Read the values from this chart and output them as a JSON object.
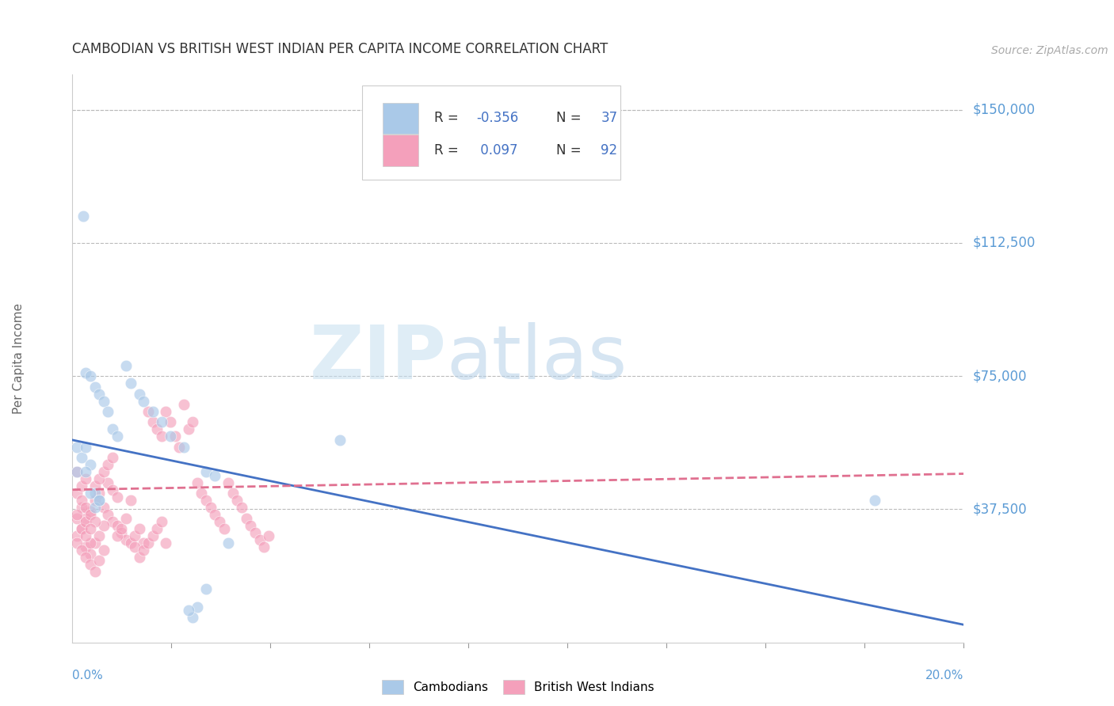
{
  "title": "CAMBODIAN VS BRITISH WEST INDIAN PER CAPITA INCOME CORRELATION CHART",
  "source": "Source: ZipAtlas.com",
  "ylabel": "Per Capita Income",
  "yticks": [
    0,
    37500,
    75000,
    112500,
    150000
  ],
  "ytick_labels": [
    "",
    "$37,500",
    "$75,000",
    "$112,500",
    "$150,000"
  ],
  "xlim": [
    0.0,
    0.2
  ],
  "ylim": [
    0,
    160000
  ],
  "watermark_zip": "ZIP",
  "watermark_atlas": "atlas",
  "legend_label_cambodians": "Cambodians",
  "legend_label_bwi": "British West Indians",
  "cambodian_color": "#aac9e8",
  "bwi_color": "#f4a0bb",
  "line_cambodian_color": "#4472c4",
  "line_bwi_color": "#e07090",
  "background_color": "#ffffff",
  "grid_color": "#bbbbbb",
  "title_color": "#333333",
  "source_color": "#aaaaaa",
  "yaxis_label_color": "#5b9bd5",
  "xaxis_label_color": "#5b9bd5",
  "cambodian_R": "-0.356",
  "cambodian_N": "37",
  "bwi_R": "0.097",
  "bwi_N": "92",
  "R_value_color": "#4472c4",
  "N_value_color": "#4472c4",
  "R_label_color": "#333333",
  "N_label_color": "#333333",
  "cambodian_dots": [
    [
      0.001,
      55000
    ],
    [
      0.002,
      52000
    ],
    [
      0.0025,
      120000
    ],
    [
      0.003,
      76000
    ],
    [
      0.004,
      75000
    ],
    [
      0.005,
      72000
    ],
    [
      0.006,
      70000
    ],
    [
      0.007,
      68000
    ],
    [
      0.008,
      65000
    ],
    [
      0.009,
      60000
    ],
    [
      0.01,
      58000
    ],
    [
      0.012,
      78000
    ],
    [
      0.013,
      73000
    ],
    [
      0.015,
      70000
    ],
    [
      0.016,
      68000
    ],
    [
      0.018,
      65000
    ],
    [
      0.003,
      55000
    ],
    [
      0.004,
      50000
    ],
    [
      0.005,
      42000
    ],
    [
      0.006,
      40000
    ],
    [
      0.02,
      62000
    ],
    [
      0.022,
      58000
    ],
    [
      0.025,
      55000
    ],
    [
      0.03,
      48000
    ],
    [
      0.032,
      47000
    ],
    [
      0.06,
      57000
    ],
    [
      0.001,
      48000
    ],
    [
      0.003,
      48000
    ],
    [
      0.004,
      42000
    ],
    [
      0.005,
      38000
    ],
    [
      0.006,
      40000
    ],
    [
      0.18,
      40000
    ],
    [
      0.035,
      28000
    ],
    [
      0.03,
      15000
    ],
    [
      0.028,
      10000
    ],
    [
      0.027,
      7000
    ],
    [
      0.026,
      9000
    ]
  ],
  "bwi_dots": [
    [
      0.001,
      30000
    ],
    [
      0.002,
      32000
    ],
    [
      0.003,
      35000
    ],
    [
      0.004,
      37000
    ],
    [
      0.005,
      40000
    ],
    [
      0.006,
      42000
    ],
    [
      0.007,
      38000
    ],
    [
      0.008,
      36000
    ],
    [
      0.009,
      34000
    ],
    [
      0.01,
      33000
    ],
    [
      0.011,
      31000
    ],
    [
      0.012,
      29000
    ],
    [
      0.013,
      28000
    ],
    [
      0.014,
      30000
    ],
    [
      0.015,
      32000
    ],
    [
      0.016,
      28000
    ],
    [
      0.017,
      65000
    ],
    [
      0.018,
      62000
    ],
    [
      0.019,
      60000
    ],
    [
      0.02,
      58000
    ],
    [
      0.021,
      65000
    ],
    [
      0.022,
      62000
    ],
    [
      0.023,
      58000
    ],
    [
      0.024,
      55000
    ],
    [
      0.025,
      67000
    ],
    [
      0.026,
      60000
    ],
    [
      0.027,
      62000
    ],
    [
      0.028,
      45000
    ],
    [
      0.029,
      42000
    ],
    [
      0.03,
      40000
    ],
    [
      0.031,
      38000
    ],
    [
      0.032,
      36000
    ],
    [
      0.033,
      34000
    ],
    [
      0.034,
      32000
    ],
    [
      0.035,
      45000
    ],
    [
      0.036,
      42000
    ],
    [
      0.037,
      40000
    ],
    [
      0.038,
      38000
    ],
    [
      0.039,
      35000
    ],
    [
      0.04,
      33000
    ],
    [
      0.041,
      31000
    ],
    [
      0.042,
      29000
    ],
    [
      0.043,
      27000
    ],
    [
      0.044,
      30000
    ],
    [
      0.003,
      27000
    ],
    [
      0.004,
      25000
    ],
    [
      0.005,
      28000
    ],
    [
      0.006,
      30000
    ],
    [
      0.007,
      33000
    ],
    [
      0.008,
      45000
    ],
    [
      0.009,
      43000
    ],
    [
      0.01,
      41000
    ],
    [
      0.001,
      35000
    ],
    [
      0.002,
      38000
    ],
    [
      0.001,
      42000
    ],
    [
      0.002,
      40000
    ],
    [
      0.003,
      38000
    ],
    [
      0.001,
      28000
    ],
    [
      0.002,
      26000
    ],
    [
      0.003,
      24000
    ],
    [
      0.004,
      22000
    ],
    [
      0.005,
      20000
    ],
    [
      0.006,
      23000
    ],
    [
      0.007,
      26000
    ],
    [
      0.002,
      32000
    ],
    [
      0.003,
      34000
    ],
    [
      0.001,
      36000
    ],
    [
      0.004,
      28000
    ],
    [
      0.002,
      44000
    ],
    [
      0.003,
      46000
    ],
    [
      0.001,
      48000
    ],
    [
      0.004,
      36000
    ],
    [
      0.005,
      34000
    ],
    [
      0.003,
      30000
    ],
    [
      0.004,
      32000
    ],
    [
      0.005,
      44000
    ],
    [
      0.006,
      46000
    ],
    [
      0.007,
      48000
    ],
    [
      0.008,
      50000
    ],
    [
      0.009,
      52000
    ],
    [
      0.01,
      30000
    ],
    [
      0.011,
      32000
    ],
    [
      0.012,
      35000
    ],
    [
      0.013,
      40000
    ],
    [
      0.014,
      27000
    ],
    [
      0.015,
      24000
    ],
    [
      0.016,
      26000
    ],
    [
      0.017,
      28000
    ],
    [
      0.018,
      30000
    ],
    [
      0.019,
      32000
    ],
    [
      0.02,
      34000
    ],
    [
      0.021,
      28000
    ]
  ],
  "cambodian_line": {
    "x0": 0.0,
    "y0": 57000,
    "x1": 0.2,
    "y1": 5000
  },
  "bwi_line": {
    "x0": 0.0,
    "y0": 43000,
    "x1": 0.2,
    "y1": 47500
  },
  "scatter_size": 110,
  "scatter_alpha": 0.65
}
